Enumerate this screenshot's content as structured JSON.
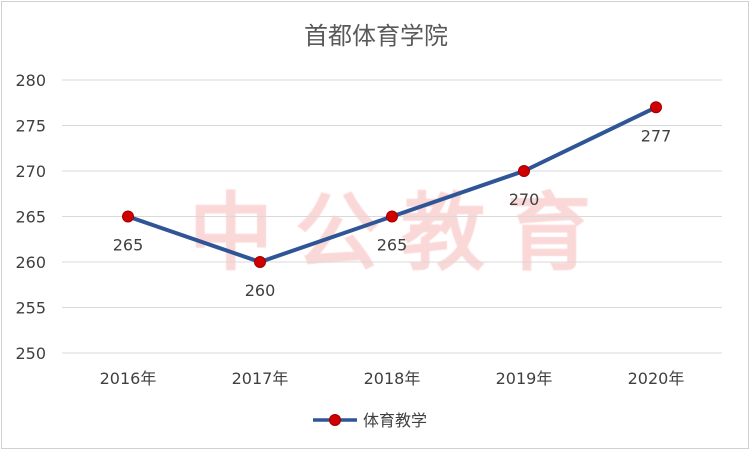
{
  "chart_data": {
    "type": "line",
    "title": "首都体育学院",
    "categories": [
      "2016年",
      "2017年",
      "2018年",
      "2019年",
      "2020年"
    ],
    "series": [
      {
        "name": "体育教学",
        "values": [
          265,
          260,
          265,
          270,
          277
        ]
      }
    ],
    "data_labels": [
      "265",
      "260",
      "265",
      "270",
      "277"
    ],
    "xlabel": "",
    "ylabel": "",
    "ylim": [
      250,
      280
    ],
    "yticks": [
      250,
      255,
      260,
      265,
      270,
      275,
      280
    ],
    "grid": true,
    "legend": "bottom",
    "colors": {
      "line": "#2F5597",
      "marker": "#D00000",
      "marker_edge": "#9E0000",
      "grid": "#D9D9D9",
      "text": "#404040",
      "title": "#595959"
    }
  },
  "watermark": "中公教育"
}
